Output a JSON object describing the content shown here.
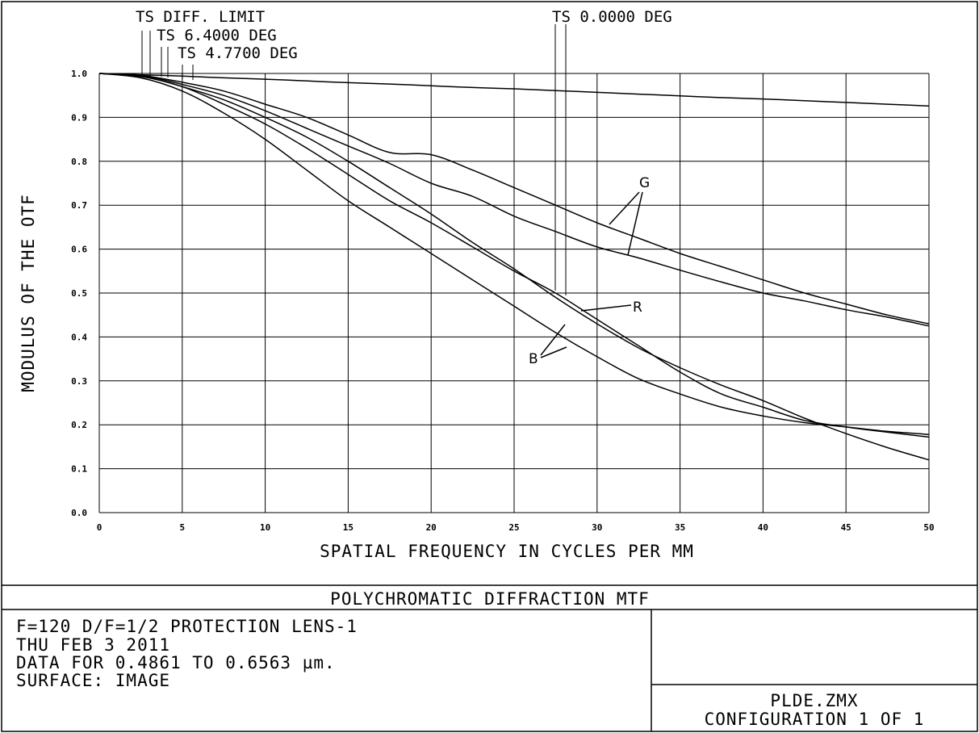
{
  "chart_data": {
    "type": "line",
    "title": "POLYCHROMATIC DIFFRACTION MTF",
    "xlabel": "SPATIAL FREQUENCY IN CYCLES PER MM",
    "ylabel": "MODULUS OF THE OTF",
    "xlim": [
      0,
      50
    ],
    "ylim": [
      0,
      1
    ],
    "x_ticks": [
      "0",
      "5",
      "10",
      "15",
      "20",
      "25",
      "30",
      "35",
      "40",
      "45",
      "50"
    ],
    "y_ticks": [
      "0.0",
      "0.1",
      "0.2",
      "0.3",
      "0.4",
      "0.5",
      "0.6",
      "0.7",
      "0.8",
      "0.9",
      "1.0"
    ],
    "grid": true,
    "legend": [
      {
        "label": "TS DIFF. LIMIT"
      },
      {
        "label": "TS 6.4000 DEG"
      },
      {
        "label": "TS 4.7700 DEG"
      },
      {
        "label": "TS 0.0000 DEG"
      }
    ],
    "curve_labels": [
      "G",
      "R",
      "B"
    ],
    "x": [
      0,
      2.5,
      5,
      7.5,
      10,
      12.5,
      15,
      17.5,
      20,
      22.5,
      25,
      27.5,
      30,
      32.5,
      35,
      37.5,
      40,
      42.5,
      45,
      47.5,
      50
    ],
    "series": [
      {
        "values": [
          1.0,
          0.997,
          0.994,
          0.99,
          0.987,
          0.983,
          0.979,
          0.976,
          0.972,
          0.968,
          0.965,
          0.961,
          0.957,
          0.953,
          0.949,
          0.945,
          0.942,
          0.938,
          0.934,
          0.93,
          0.926
        ]
      },
      {
        "values": [
          1.0,
          0.996,
          0.98,
          0.96,
          0.93,
          0.9,
          0.86,
          0.82,
          0.815,
          0.78,
          0.74,
          0.7,
          0.66,
          0.625,
          0.59,
          0.56,
          0.53,
          0.5,
          0.475,
          0.45,
          0.43
        ]
      },
      {
        "values": [
          1.0,
          0.996,
          0.975,
          0.95,
          0.915,
          0.875,
          0.835,
          0.795,
          0.75,
          0.72,
          0.675,
          0.64,
          0.605,
          0.58,
          0.552,
          0.525,
          0.5,
          0.482,
          0.462,
          0.445,
          0.425
        ]
      },
      {
        "values": [
          1.0,
          0.994,
          0.97,
          0.94,
          0.9,
          0.855,
          0.8,
          0.74,
          0.68,
          0.615,
          0.555,
          0.49,
          0.43,
          0.375,
          0.33,
          0.29,
          0.255,
          0.215,
          0.18,
          0.148,
          0.12
        ]
      },
      {
        "values": [
          1.0,
          0.993,
          0.97,
          0.93,
          0.885,
          0.83,
          0.77,
          0.71,
          0.66,
          0.605,
          0.55,
          0.5,
          0.44,
          0.38,
          0.32,
          0.27,
          0.24,
          0.21,
          0.195,
          0.183,
          0.172
        ]
      },
      {
        "values": [
          1.0,
          0.99,
          0.96,
          0.91,
          0.85,
          0.78,
          0.71,
          0.65,
          0.59,
          0.53,
          0.47,
          0.41,
          0.355,
          0.305,
          0.27,
          0.24,
          0.22,
          0.205,
          0.195,
          0.185,
          0.178
        ]
      }
    ]
  },
  "info": {
    "line1": "F=120  D/F=1/2 PROTECTION LENS-1",
    "line2": "THU FEB 3 2011",
    "line3": "DATA FOR 0.4861 TO 0.6563 µm.",
    "line4": "SURFACE: IMAGE",
    "file": "PLDE.ZMX",
    "config": "CONFIGURATION 1 OF 1"
  }
}
